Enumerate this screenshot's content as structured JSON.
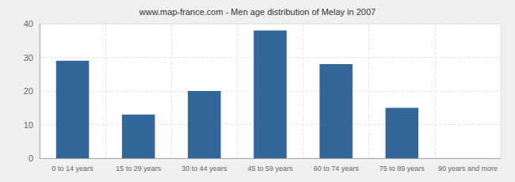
{
  "chart_data": {
    "type": "bar",
    "title": "www.map-france.com - Men age distribution of Melay in 2007",
    "categories": [
      "0 to 14 years",
      "15 to 29 years",
      "30 to 44 years",
      "45 to 59 years",
      "60 to 74 years",
      "75 to 89 years",
      "90 years and more"
    ],
    "values": [
      29,
      13,
      20,
      38,
      28,
      15,
      0
    ],
    "color": "#336699",
    "ylim": [
      0,
      40
    ],
    "yticks": [
      0,
      10,
      20,
      30,
      40
    ],
    "grid": true
  }
}
